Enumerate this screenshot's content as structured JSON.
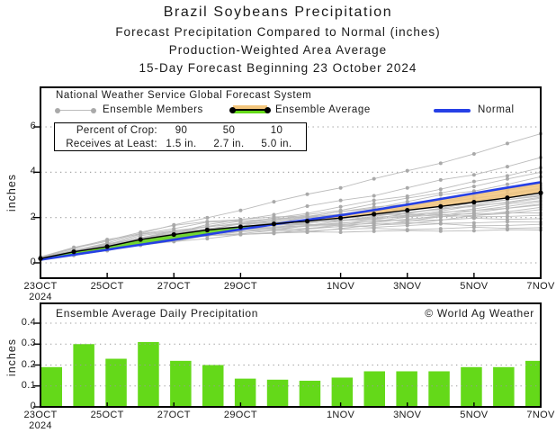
{
  "page_title": {
    "line1": "Brazil Soybeans Precipitation",
    "line2": "Forecast Precipitation Compared to Normal (inches)",
    "line3": "Production-Weighted Area Average",
    "line4": "15-Day Forecast Beginning 23 October 2024"
  },
  "top_chart": {
    "source": "National Weather Service Global Forecast System",
    "legend": {
      "members_label": "Ensemble Members",
      "average_label": "Ensemble Average",
      "normal_label": "Normal"
    },
    "crop_table": {
      "row1_label": "Percent of Crop:",
      "row1_values": [
        "90",
        "50",
        "10"
      ],
      "row2_label": "Receives at Least:",
      "row2_values": [
        "1.5 in.",
        "2.7 in.",
        "5.0 in."
      ]
    },
    "ylabel": "inches"
  },
  "bottom_chart": {
    "title": "Ensemble Average Daily Precipitation",
    "credit": "© World Ag Weather",
    "ylabel": "inches"
  },
  "x_axis": {
    "tick_labels": [
      "23OCT",
      "25OCT",
      "27OCT",
      "29OCT",
      "1NOV",
      "3NOV",
      "5NOV",
      "7NOV"
    ],
    "tick_days": [
      0,
      2,
      4,
      6,
      9,
      11,
      13,
      15
    ],
    "year_label": "2024",
    "num_days": 15
  },
  "chart_data": [
    {
      "type": "line",
      "title": "Forecast cumulative precipitation compared to normal (inches)",
      "ylabel": "inches",
      "ylim": [
        0,
        6
      ],
      "yticks": [
        0,
        2,
        4,
        6
      ],
      "grid": "dotted horizontal",
      "x_days": [
        0,
        1,
        2,
        3,
        4,
        5,
        6,
        7,
        8,
        9,
        10,
        11,
        12,
        13,
        14,
        15
      ],
      "series": [
        {
          "name": "Ensemble Average",
          "values": [
            0.19,
            0.49,
            0.72,
            1.03,
            1.25,
            1.45,
            1.59,
            1.72,
            1.84,
            1.98,
            2.15,
            2.32,
            2.49,
            2.68,
            2.87,
            3.09
          ]
        },
        {
          "name": "Normal",
          "values": [
            0.14,
            0.36,
            0.58,
            0.8,
            1.02,
            1.25,
            1.48,
            1.7,
            1.9,
            2.1,
            2.33,
            2.57,
            2.82,
            3.07,
            3.32,
            3.56
          ]
        }
      ],
      "band_rule": "green where average above normal, orange where below",
      "ensemble_members": {
        "count": 28,
        "note": "visually estimated gray member traces; value(day)=final*shape[day]",
        "shapes": {
          "A": [
            0.12,
            0.3,
            0.46,
            0.62,
            0.74,
            0.83,
            0.88,
            0.915,
            0.935,
            0.95,
            0.96,
            0.97,
            0.978,
            0.986,
            0.993,
            1.0
          ],
          "B": [
            0.065,
            0.155,
            0.235,
            0.33,
            0.405,
            0.47,
            0.515,
            0.555,
            0.595,
            0.64,
            0.695,
            0.75,
            0.805,
            0.87,
            0.935,
            1.0
          ],
          "C": [
            0.045,
            0.11,
            0.17,
            0.23,
            0.29,
            0.35,
            0.41,
            0.47,
            0.53,
            0.585,
            0.65,
            0.71,
            0.775,
            0.845,
            0.92,
            1.0
          ]
        },
        "members": [
          {
            "final": 1.45,
            "shape": "A"
          },
          {
            "final": 1.55,
            "shape": "A"
          },
          {
            "final": 1.7,
            "shape": "A"
          },
          {
            "final": 1.8,
            "shape": "A"
          },
          {
            "final": 1.95,
            "shape": "A"
          },
          {
            "final": 2.1,
            "shape": "A"
          },
          {
            "final": 2.2,
            "shape": "A"
          },
          {
            "final": 2.35,
            "shape": "B"
          },
          {
            "final": 2.45,
            "shape": "B"
          },
          {
            "final": 2.55,
            "shape": "B"
          },
          {
            "final": 2.6,
            "shape": "B"
          },
          {
            "final": 2.7,
            "shape": "B"
          },
          {
            "final": 2.75,
            "shape": "B"
          },
          {
            "final": 2.85,
            "shape": "B"
          },
          {
            "final": 2.9,
            "shape": "B"
          },
          {
            "final": 2.95,
            "shape": "B"
          },
          {
            "final": 3.0,
            "shape": "B"
          },
          {
            "final": 3.1,
            "shape": "B"
          },
          {
            "final": 3.15,
            "shape": "B"
          },
          {
            "final": 3.25,
            "shape": "B"
          },
          {
            "final": 3.3,
            "shape": "B"
          },
          {
            "final": 3.4,
            "shape": "B"
          },
          {
            "final": 3.5,
            "shape": "B"
          },
          {
            "final": 3.8,
            "shape": "C"
          },
          {
            "final": 4.0,
            "shape": "C"
          },
          {
            "final": 4.2,
            "shape": "C"
          },
          {
            "final": 4.65,
            "shape": "C"
          },
          {
            "final": 5.7,
            "shape": "C"
          }
        ]
      }
    },
    {
      "type": "bar",
      "title": "Ensemble Average Daily Precipitation",
      "ylabel": "inches",
      "ylim": [
        0,
        0.45
      ],
      "yticks": [
        0,
        0.1,
        0.2,
        0.3,
        0.4
      ],
      "grid": "dotted horizontal",
      "values": [
        0.19,
        0.3,
        0.23,
        0.31,
        0.22,
        0.2,
        0.135,
        0.13,
        0.125,
        0.14,
        0.17,
        0.17,
        0.17,
        0.19,
        0.19,
        0.22
      ]
    }
  ],
  "colors": {
    "normal_blue": "#2640e6",
    "band_green": "#64d919",
    "band_orange": "#f3c67d",
    "bar_green": "#64d919",
    "member_gray": "#bcbcbc",
    "member_dot_gray": "#a9a9a9",
    "average_black": "#000000",
    "grid_gray": "#9a9a9a",
    "text_black": "#1a1a1a"
  }
}
